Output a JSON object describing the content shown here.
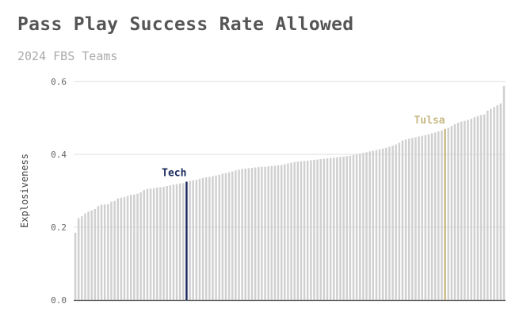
{
  "chart_data": {
    "type": "bar",
    "title": "Pass Play Success Rate Allowed",
    "subtitle": "2024 FBS Teams",
    "ylabel": "Explosiveness",
    "xlabel": "",
    "ylim": [
      0,
      0.6
    ],
    "yticks": [
      "0.0",
      "0.2",
      "0.4",
      "0.6"
    ],
    "ytick_values": [
      0,
      0.2,
      0.4,
      0.6
    ],
    "grid": "horizontal",
    "bar_color": "#d0d0d0",
    "values": [
      0.185,
      0.225,
      0.23,
      0.238,
      0.243,
      0.246,
      0.25,
      0.258,
      0.262,
      0.262,
      0.263,
      0.27,
      0.272,
      0.279,
      0.281,
      0.283,
      0.286,
      0.289,
      0.29,
      0.292,
      0.296,
      0.302,
      0.305,
      0.306,
      0.307,
      0.309,
      0.31,
      0.311,
      0.313,
      0.315,
      0.317,
      0.318,
      0.32,
      0.321,
      0.325,
      0.327,
      0.329,
      0.33,
      0.333,
      0.335,
      0.337,
      0.338,
      0.34,
      0.342,
      0.344,
      0.347,
      0.349,
      0.351,
      0.353,
      0.356,
      0.358,
      0.36,
      0.361,
      0.362,
      0.363,
      0.364,
      0.365,
      0.366,
      0.366,
      0.367,
      0.368,
      0.369,
      0.37,
      0.371,
      0.373,
      0.375,
      0.377,
      0.379,
      0.38,
      0.381,
      0.382,
      0.383,
      0.384,
      0.385,
      0.386,
      0.387,
      0.388,
      0.389,
      0.39,
      0.391,
      0.392,
      0.393,
      0.394,
      0.395,
      0.396,
      0.398,
      0.4,
      0.402,
      0.404,
      0.406,
      0.408,
      0.41,
      0.412,
      0.414,
      0.416,
      0.418,
      0.421,
      0.424,
      0.427,
      0.432,
      0.438,
      0.441,
      0.443,
      0.445,
      0.447,
      0.449,
      0.451,
      0.453,
      0.455,
      0.458,
      0.46,
      0.463,
      0.466,
      0.47,
      0.473,
      0.478,
      0.483,
      0.487,
      0.49,
      0.492,
      0.495,
      0.498,
      0.502,
      0.505,
      0.508,
      0.51,
      0.52,
      0.525,
      0.53,
      0.535,
      0.54,
      0.588
    ],
    "highlights": [
      {
        "label": "Tech",
        "index": 34,
        "color": "#1b2a5e"
      },
      {
        "label": "Tulsa",
        "index": 113,
        "color": "#c8b983"
      }
    ]
  }
}
